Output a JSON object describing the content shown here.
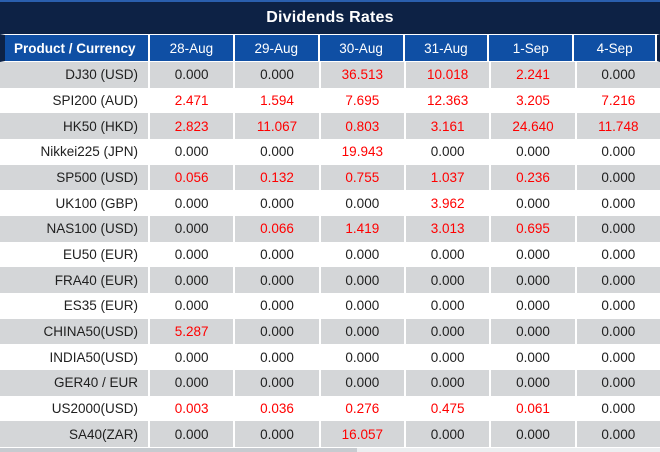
{
  "title": "Dividends Rates",
  "table": {
    "columns": [
      "Product / Currency",
      "28-Aug",
      "29-Aug",
      "30-Aug",
      "31-Aug",
      "1-Sep",
      "4-Sep"
    ],
    "rows": [
      {
        "product": "DJ30 (USD)",
        "values": [
          "0.000",
          "0.000",
          "36.513",
          "10.018",
          "2.241",
          "0.000"
        ],
        "red": [
          false,
          false,
          true,
          true,
          true,
          false
        ]
      },
      {
        "product": "SPI200 (AUD)",
        "values": [
          "2.471",
          "1.594",
          "7.695",
          "12.363",
          "3.205",
          "7.216"
        ],
        "red": [
          true,
          true,
          true,
          true,
          true,
          true
        ]
      },
      {
        "product": "HK50 (HKD)",
        "values": [
          "2.823",
          "11.067",
          "0.803",
          "3.161",
          "24.640",
          "11.748"
        ],
        "red": [
          true,
          true,
          true,
          true,
          true,
          true
        ]
      },
      {
        "product": "Nikkei225 (JPN)",
        "values": [
          "0.000",
          "0.000",
          "19.943",
          "0.000",
          "0.000",
          "0.000"
        ],
        "red": [
          false,
          false,
          true,
          false,
          false,
          false
        ]
      },
      {
        "product": "SP500 (USD)",
        "values": [
          "0.056",
          "0.132",
          "0.755",
          "1.037",
          "0.236",
          "0.000"
        ],
        "red": [
          true,
          true,
          true,
          true,
          true,
          false
        ]
      },
      {
        "product": "UK100 (GBP)",
        "values": [
          "0.000",
          "0.000",
          "0.000",
          "3.962",
          "0.000",
          "0.000"
        ],
        "red": [
          false,
          false,
          false,
          true,
          false,
          false
        ]
      },
      {
        "product": "NAS100 (USD)",
        "values": [
          "0.000",
          "0.066",
          "1.419",
          "3.013",
          "0.695",
          "0.000"
        ],
        "red": [
          false,
          true,
          true,
          true,
          true,
          false
        ]
      },
      {
        "product": "EU50 (EUR)",
        "values": [
          "0.000",
          "0.000",
          "0.000",
          "0.000",
          "0.000",
          "0.000"
        ],
        "red": [
          false,
          false,
          false,
          false,
          false,
          false
        ]
      },
      {
        "product": "FRA40 (EUR)",
        "values": [
          "0.000",
          "0.000",
          "0.000",
          "0.000",
          "0.000",
          "0.000"
        ],
        "red": [
          false,
          false,
          false,
          false,
          false,
          false
        ]
      },
      {
        "product": "ES35 (EUR)",
        "values": [
          "0.000",
          "0.000",
          "0.000",
          "0.000",
          "0.000",
          "0.000"
        ],
        "red": [
          false,
          false,
          false,
          false,
          false,
          false
        ]
      },
      {
        "product": "CHINA50(USD)",
        "values": [
          "5.287",
          "0.000",
          "0.000",
          "0.000",
          "0.000",
          "0.000"
        ],
        "red": [
          true,
          false,
          false,
          false,
          false,
          false
        ]
      },
      {
        "product": "INDIA50(USD)",
        "values": [
          "0.000",
          "0.000",
          "0.000",
          "0.000",
          "0.000",
          "0.000"
        ],
        "red": [
          false,
          false,
          false,
          false,
          false,
          false
        ]
      },
      {
        "product": "GER40 / EUR",
        "values": [
          "0.000",
          "0.000",
          "0.000",
          "0.000",
          "0.000",
          "0.000"
        ],
        "red": [
          false,
          false,
          false,
          false,
          false,
          false
        ]
      },
      {
        "product": "US2000(USD)",
        "values": [
          "0.003",
          "0.036",
          "0.276",
          "0.475",
          "0.061",
          "0.000"
        ],
        "red": [
          true,
          true,
          true,
          true,
          true,
          false
        ]
      },
      {
        "product": "SA40(ZAR)",
        "values": [
          "0.000",
          "0.000",
          "16.057",
          "0.000",
          "0.000",
          "0.000"
        ],
        "red": [
          false,
          false,
          true,
          false,
          false,
          false
        ]
      }
    ]
  },
  "colors": {
    "title_bar": "#0d2245",
    "top_line": "#2a5fae",
    "header_blue": "#0f4fa4",
    "row_alt_gray": "#d4d6d8",
    "value_red": "#ff0000",
    "text_dark": "#202020",
    "header_text": "#ffffff"
  }
}
